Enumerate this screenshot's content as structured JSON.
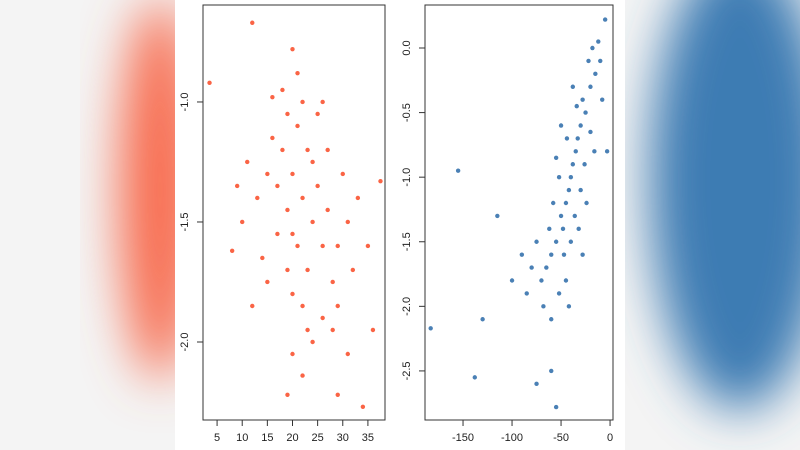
{
  "chart_data": [
    {
      "type": "scatter",
      "color": "#fa6445",
      "x": [
        22,
        20,
        24,
        18,
        26,
        21,
        23,
        19,
        25,
        17,
        27,
        15,
        29,
        22,
        20,
        24,
        16,
        28,
        21,
        23,
        13,
        31,
        18,
        26,
        20,
        25,
        14,
        30,
        22,
        19,
        27,
        17,
        32,
        11,
        24,
        21,
        28,
        15,
        33,
        10,
        26,
        23,
        19,
        29,
        16,
        35,
        9,
        12,
        31,
        20,
        3.5,
        12,
        20,
        37.5,
        34,
        29,
        19,
        22,
        8,
        36
      ],
      "y": [
        -1.4,
        -1.3,
        -1.5,
        -1.2,
        -1.6,
        -1.1,
        -1.7,
        -1.45,
        -1.35,
        -1.55,
        -1.45,
        -1.3,
        -1.6,
        -1.0,
        -1.8,
        -1.25,
        -1.15,
        -1.75,
        -1.6,
        -1.2,
        -1.4,
        -1.5,
        -0.95,
        -1.9,
        -1.55,
        -1.05,
        -1.65,
        -1.3,
        -1.85,
        -1.05,
        -1.2,
        -1.35,
        -1.7,
        -1.25,
        -2.0,
        -0.88,
        -1.95,
        -1.75,
        -1.4,
        -1.5,
        -1.0,
        -1.95,
        -1.7,
        -1.85,
        -0.98,
        -1.6,
        -1.35,
        -1.85,
        -2.05,
        -2.05,
        -0.92,
        -0.67,
        -0.78,
        -1.33,
        -2.27,
        -2.22,
        -2.22,
        -2.14,
        -1.62,
        -1.95
      ],
      "xlim": [
        2.2,
        38.4
      ],
      "ylim": [
        -2.325,
        -0.596
      ],
      "xticks": [
        5,
        10,
        15,
        20,
        25,
        30,
        35
      ],
      "yticks": [
        {
          "value": -1,
          "label": "-1.0"
        },
        {
          "value": -1.5,
          "label": "-1.5"
        },
        {
          "value": -2,
          "label": "-2.0"
        }
      ]
    },
    {
      "type": "scatter",
      "color": "#4a80b5",
      "x": [
        -40,
        -35,
        -45,
        -30,
        -50,
        -25,
        -55,
        -38,
        -42,
        -20,
        -60,
        -33,
        -48,
        -15,
        -65,
        -28,
        -52,
        -36,
        -22,
        -70,
        -44,
        -30,
        -58,
        -18,
        -47,
        -26,
        -62,
        -12,
        -40,
        -34,
        -75,
        -55,
        -20,
        -68,
        -45,
        -10,
        -80,
        -32,
        -50,
        -85,
        -24,
        -60,
        -38,
        -90,
        -8,
        -52,
        -16,
        -100,
        -42,
        -28,
        -183,
        -138,
        -55,
        -75,
        -60,
        -155,
        -5,
        -130,
        -115,
        -3
      ],
      "y": [
        -1.0,
        -0.8,
        -1.2,
        -0.6,
        -1.3,
        -0.5,
        -1.5,
        -0.9,
        -1.1,
        -0.3,
        -1.6,
        -0.7,
        -1.4,
        -0.2,
        -1.7,
        -0.4,
        -1.0,
        -1.3,
        -0.1,
        -1.8,
        -0.7,
        -1.1,
        -1.2,
        0.0,
        -1.6,
        -0.9,
        -1.4,
        0.05,
        -1.5,
        -0.45,
        -1.5,
        -0.85,
        -0.65,
        -2.0,
        -1.8,
        -0.1,
        -1.7,
        -1.4,
        -0.6,
        -1.9,
        -1.2,
        -2.1,
        -0.3,
        -1.6,
        -0.4,
        -1.9,
        -0.8,
        -1.8,
        -2.0,
        -1.6,
        -2.17,
        -2.55,
        -2.78,
        -2.6,
        -2.5,
        -0.95,
        0.22,
        -2.1,
        -1.3,
        -0.8
      ],
      "xlim": [
        -188.8,
        3
      ],
      "ylim": [
        -2.88,
        0.333
      ],
      "xticks": [
        -150,
        -100,
        -50,
        0
      ],
      "yticks": [
        {
          "value": 0,
          "label": "0.0"
        },
        {
          "value": -0.5,
          "label": "-0.5"
        },
        {
          "value": -1,
          "label": "-1.0"
        },
        {
          "value": -1.5,
          "label": "-1.5"
        },
        {
          "value": -2,
          "label": "-2.0"
        },
        {
          "value": -2.5,
          "label": "-2.5"
        }
      ]
    }
  ]
}
